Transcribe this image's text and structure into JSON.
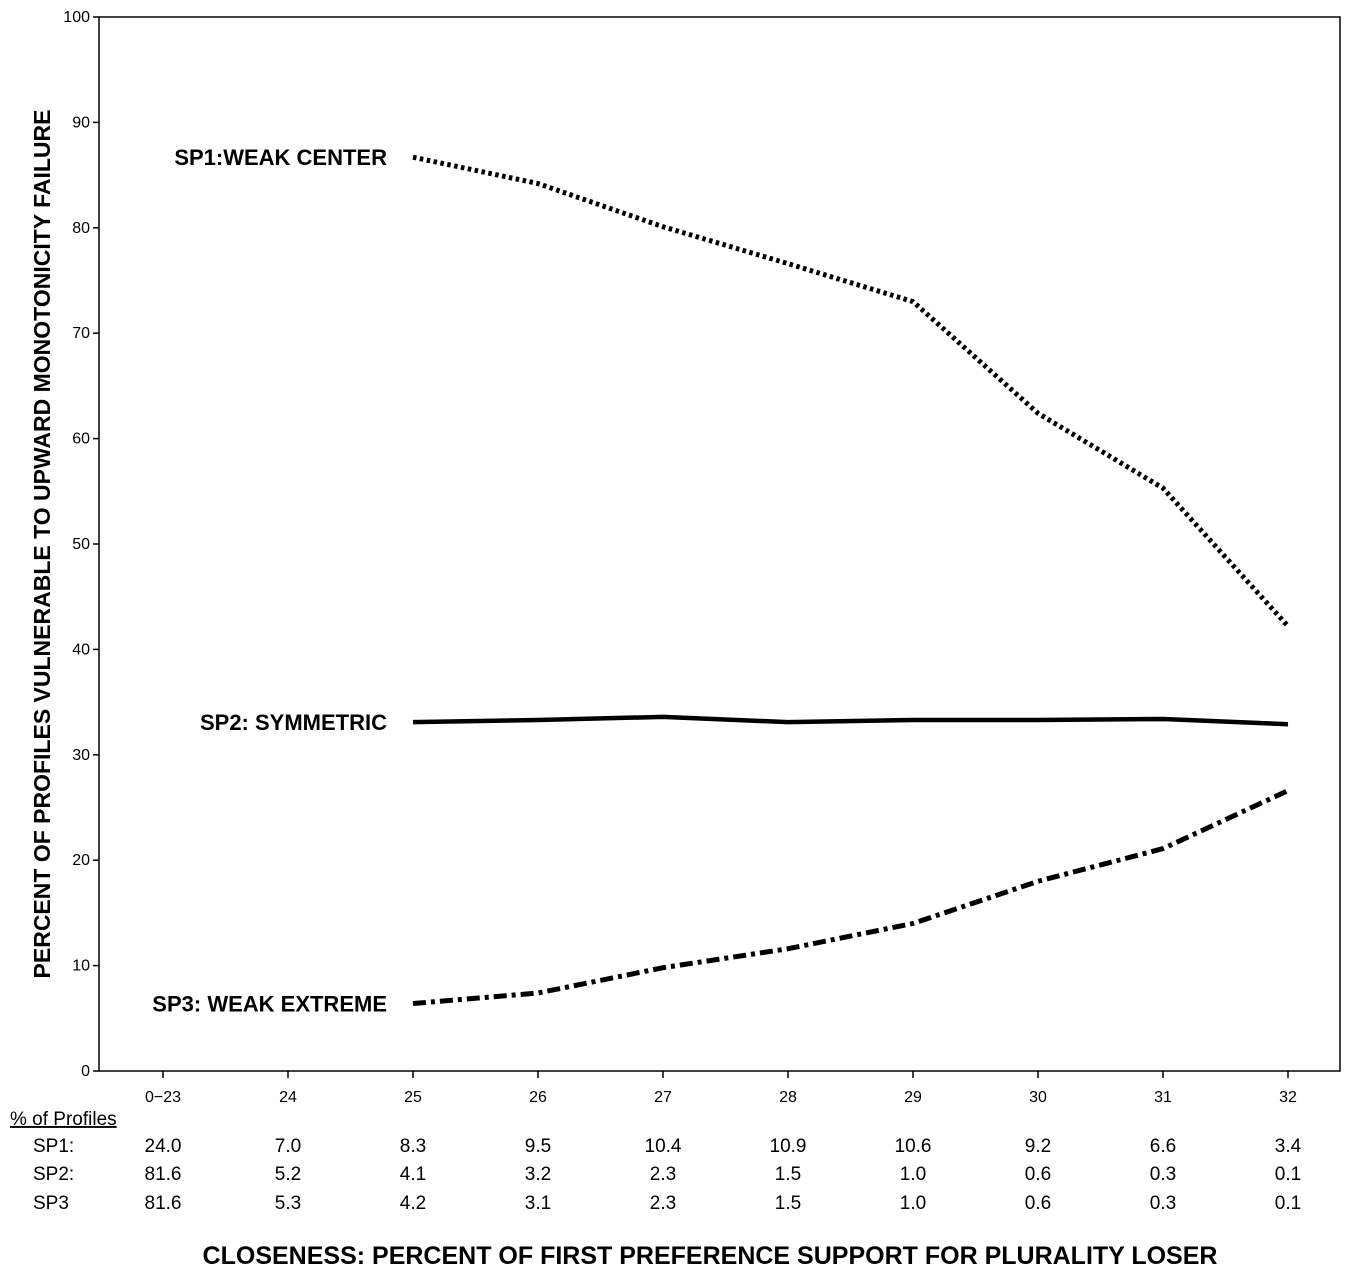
{
  "chart_data": {
    "type": "line",
    "categories": [
      "0−23",
      "24",
      "25",
      "26",
      "27",
      "28",
      "29",
      "30",
      "31",
      "32"
    ],
    "series": [
      {
        "name": "SP1:WEAK CENTER",
        "line_style": "dotted",
        "values": [
          null,
          null,
          86.7,
          84.2,
          80.1,
          76.6,
          73.0,
          62.4,
          55.3,
          42.2
        ]
      },
      {
        "name": "SP2: SYMMETRIC",
        "line_style": "solid",
        "values": [
          null,
          null,
          33.1,
          33.3,
          33.6,
          33.1,
          33.3,
          33.3,
          33.4,
          32.9
        ]
      },
      {
        "name": "SP3: WEAK EXTREME",
        "line_style": "dash-dot",
        "values": [
          null,
          null,
          6.4,
          7.4,
          9.8,
          11.6,
          14.0,
          18.0,
          21.1,
          26.6
        ]
      }
    ],
    "ylim": [
      0,
      100
    ],
    "yticks": [
      0,
      10,
      20,
      30,
      40,
      50,
      60,
      70,
      80,
      90,
      100
    ],
    "ylabel": "PERCENT OF PROFILES VULNERABLE TO UPWARD MONOTONICITY FAILURE",
    "xlabel": "CLOSENESS: PERCENT OF FIRST PREFERENCE SUPPORT FOR PLURALITY LOSER",
    "grid": false,
    "legend": "inline labels at left of each line"
  },
  "profiles_table": {
    "header": "% of Profiles",
    "rows": [
      {
        "label": "SP1:",
        "values": [
          "24.0",
          "7.0",
          "8.3",
          "9.5",
          "10.4",
          "10.9",
          "10.6",
          "9.2",
          "6.6",
          "3.4"
        ]
      },
      {
        "label": "SP2:",
        "values": [
          "81.6",
          "5.2",
          "4.1",
          "3.2",
          "2.3",
          "1.5",
          "1.0",
          "0.6",
          "0.3",
          "0.1"
        ]
      },
      {
        "label": "SP3",
        "values": [
          "81.6",
          "5.3",
          "4.2",
          "3.1",
          "2.3",
          "1.5",
          "1.0",
          "0.6",
          "0.3",
          "0.1"
        ]
      }
    ]
  }
}
